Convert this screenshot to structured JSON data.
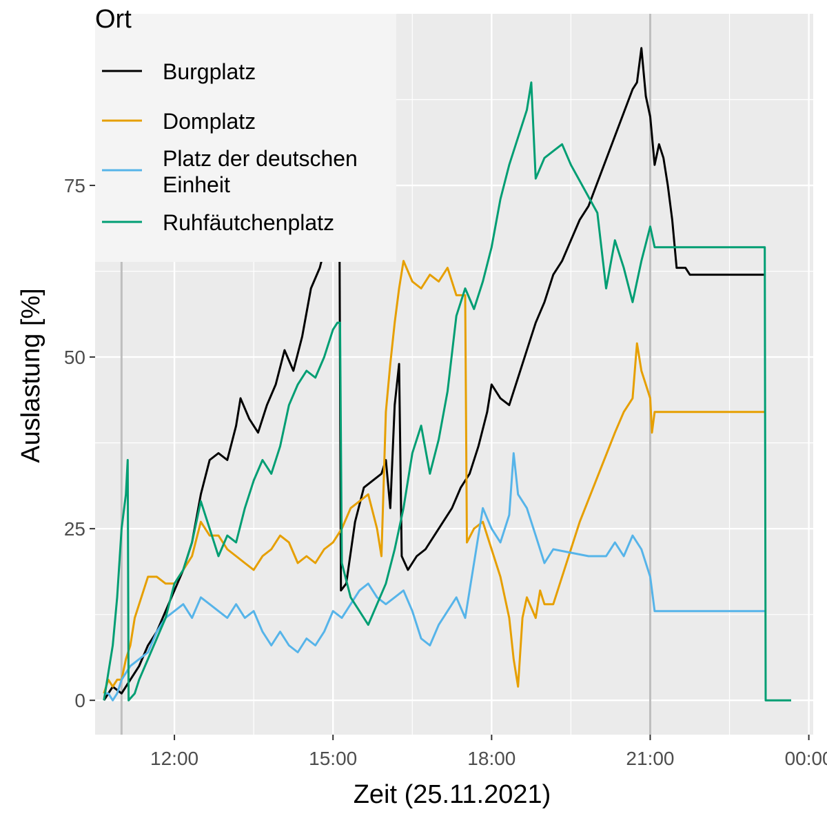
{
  "chart_data": {
    "type": "line",
    "xlabel": "Zeit (25.11.2021)",
    "ylabel": "Auslastung [%]",
    "xlim": [
      "10:30",
      "00:05"
    ],
    "ylim": [
      -5,
      100
    ],
    "x_ticks": [
      "12:00",
      "15:00",
      "18:00",
      "21:00",
      "00:00"
    ],
    "y_ticks": [
      0,
      25,
      50,
      75
    ],
    "grid": true,
    "vertical_reference_lines": [
      "11:00",
      "21:00"
    ],
    "legend": {
      "title": "Ort",
      "placement": "top-left"
    },
    "series": [
      {
        "name": "Burgplatz",
        "color": "#000000",
        "points": [
          [
            "10:40",
            0
          ],
          [
            "10:50",
            2
          ],
          [
            "11:00",
            1
          ],
          [
            "11:10",
            3
          ],
          [
            "11:20",
            5
          ],
          [
            "11:30",
            8
          ],
          [
            "11:40",
            10
          ],
          [
            "11:50",
            13
          ],
          [
            "12:00",
            16
          ],
          [
            "12:10",
            19
          ],
          [
            "12:20",
            23
          ],
          [
            "12:30",
            30
          ],
          [
            "12:40",
            35
          ],
          [
            "12:50",
            36
          ],
          [
            "13:00",
            35
          ],
          [
            "13:10",
            40
          ],
          [
            "13:15",
            44
          ],
          [
            "13:25",
            41
          ],
          [
            "13:35",
            39
          ],
          [
            "13:45",
            43
          ],
          [
            "13:55",
            46
          ],
          [
            "14:05",
            51
          ],
          [
            "14:15",
            48
          ],
          [
            "14:25",
            53
          ],
          [
            "14:35",
            60
          ],
          [
            "14:45",
            63
          ],
          [
            "14:55",
            68
          ],
          [
            "15:00",
            72
          ],
          [
            "15:03",
            75
          ],
          [
            "15:05",
            77
          ],
          [
            "15:07",
            78
          ],
          [
            "15:09",
            16
          ],
          [
            "15:15",
            17
          ],
          [
            "15:25",
            26
          ],
          [
            "15:35",
            31
          ],
          [
            "15:45",
            32
          ],
          [
            "15:55",
            33
          ],
          [
            "16:00",
            35
          ],
          [
            "16:05",
            28
          ],
          [
            "16:10",
            43
          ],
          [
            "16:15",
            49
          ],
          [
            "16:18",
            21
          ],
          [
            "16:25",
            19
          ],
          [
            "16:35",
            21
          ],
          [
            "16:45",
            22
          ],
          [
            "16:55",
            24
          ],
          [
            "17:05",
            26
          ],
          [
            "17:15",
            28
          ],
          [
            "17:25",
            31
          ],
          [
            "17:35",
            33
          ],
          [
            "17:45",
            37
          ],
          [
            "17:55",
            42
          ],
          [
            "18:00",
            46
          ],
          [
            "18:10",
            44
          ],
          [
            "18:20",
            43
          ],
          [
            "18:30",
            47
          ],
          [
            "18:40",
            51
          ],
          [
            "18:50",
            55
          ],
          [
            "19:00",
            58
          ],
          [
            "19:10",
            62
          ],
          [
            "19:20",
            64
          ],
          [
            "19:30",
            67
          ],
          [
            "19:40",
            70
          ],
          [
            "19:50",
            72
          ],
          [
            "20:40",
            89
          ],
          [
            "20:45",
            90
          ],
          [
            "20:50",
            95
          ],
          [
            "20:55",
            88
          ],
          [
            "21:00",
            85
          ],
          [
            "21:05",
            78
          ],
          [
            "21:10",
            81
          ],
          [
            "21:15",
            79
          ],
          [
            "21:20",
            75
          ],
          [
            "21:25",
            70
          ],
          [
            "21:30",
            63
          ],
          [
            "21:40",
            63
          ],
          [
            "21:45",
            62
          ],
          [
            "23:10",
            62
          ]
        ]
      },
      {
        "name": "Domplatz",
        "color": "#E69F00",
        "points": [
          [
            "10:40",
            1
          ],
          [
            "10:45",
            3
          ],
          [
            "10:50",
            2
          ],
          [
            "10:55",
            3
          ],
          [
            "11:00",
            3
          ],
          [
            "11:05",
            6
          ],
          [
            "11:10",
            8
          ],
          [
            "11:15",
            12
          ],
          [
            "11:20",
            14
          ],
          [
            "11:25",
            16
          ],
          [
            "11:30",
            18
          ],
          [
            "11:40",
            18
          ],
          [
            "11:50",
            17
          ],
          [
            "12:00",
            17
          ],
          [
            "12:10",
            19
          ],
          [
            "12:20",
            21
          ],
          [
            "12:30",
            26
          ],
          [
            "12:40",
            24
          ],
          [
            "12:50",
            24
          ],
          [
            "13:00",
            22
          ],
          [
            "13:10",
            21
          ],
          [
            "13:20",
            20
          ],
          [
            "13:30",
            19
          ],
          [
            "13:40",
            21
          ],
          [
            "13:50",
            22
          ],
          [
            "14:00",
            24
          ],
          [
            "14:10",
            23
          ],
          [
            "14:20",
            20
          ],
          [
            "14:30",
            21
          ],
          [
            "14:40",
            20
          ],
          [
            "14:50",
            22
          ],
          [
            "15:00",
            23
          ],
          [
            "15:10",
            25
          ],
          [
            "15:20",
            28
          ],
          [
            "15:30",
            29
          ],
          [
            "15:40",
            30
          ],
          [
            "15:50",
            25
          ],
          [
            "15:55",
            21
          ],
          [
            "16:00",
            42
          ],
          [
            "16:05",
            49
          ],
          [
            "16:10",
            55
          ],
          [
            "16:15",
            60
          ],
          [
            "16:20",
            64
          ],
          [
            "16:30",
            61
          ],
          [
            "16:40",
            60
          ],
          [
            "16:50",
            62
          ],
          [
            "17:00",
            61
          ],
          [
            "17:10",
            63
          ],
          [
            "17:20",
            59
          ],
          [
            "17:25",
            59
          ],
          [
            "17:30",
            59
          ],
          [
            "17:32",
            23
          ],
          [
            "17:40",
            25
          ],
          [
            "17:50",
            26
          ],
          [
            "18:00",
            22
          ],
          [
            "18:10",
            18
          ],
          [
            "18:20",
            12
          ],
          [
            "18:25",
            6
          ],
          [
            "18:30",
            2
          ],
          [
            "18:35",
            12
          ],
          [
            "18:40",
            15
          ],
          [
            "18:50",
            12
          ],
          [
            "18:55",
            16
          ],
          [
            "19:00",
            14
          ],
          [
            "19:10",
            14
          ],
          [
            "19:40",
            26
          ],
          [
            "20:20",
            39
          ],
          [
            "20:30",
            42
          ],
          [
            "20:40",
            44
          ],
          [
            "20:45",
            52
          ],
          [
            "20:50",
            48
          ],
          [
            "21:00",
            44
          ],
          [
            "21:02",
            39
          ],
          [
            "21:05",
            42
          ],
          [
            "23:10",
            42
          ]
        ]
      },
      {
        "name": "Platz der deutschen Einheit",
        "color": "#56B4E9",
        "points": [
          [
            "10:40",
            1
          ],
          [
            "10:45",
            1
          ],
          [
            "10:50",
            0
          ],
          [
            "10:55",
            1
          ],
          [
            "11:00",
            3
          ],
          [
            "11:10",
            5
          ],
          [
            "11:20",
            6
          ],
          [
            "11:30",
            7
          ],
          [
            "11:40",
            10
          ],
          [
            "11:50",
            12
          ],
          [
            "12:00",
            13
          ],
          [
            "12:10",
            14
          ],
          [
            "12:20",
            12
          ],
          [
            "12:30",
            15
          ],
          [
            "12:40",
            14
          ],
          [
            "12:50",
            13
          ],
          [
            "13:00",
            12
          ],
          [
            "13:10",
            14
          ],
          [
            "13:20",
            12
          ],
          [
            "13:30",
            13
          ],
          [
            "13:40",
            10
          ],
          [
            "13:50",
            8
          ],
          [
            "14:00",
            10
          ],
          [
            "14:10",
            8
          ],
          [
            "14:20",
            7
          ],
          [
            "14:30",
            9
          ],
          [
            "14:40",
            8
          ],
          [
            "14:50",
            10
          ],
          [
            "15:00",
            13
          ],
          [
            "15:10",
            12
          ],
          [
            "15:20",
            14
          ],
          [
            "15:30",
            16
          ],
          [
            "15:40",
            17
          ],
          [
            "15:50",
            15
          ],
          [
            "16:00",
            14
          ],
          [
            "16:10",
            15
          ],
          [
            "16:20",
            16
          ],
          [
            "16:30",
            13
          ],
          [
            "16:40",
            9
          ],
          [
            "16:50",
            8
          ],
          [
            "17:00",
            11
          ],
          [
            "17:10",
            13
          ],
          [
            "17:20",
            15
          ],
          [
            "17:30",
            12
          ],
          [
            "17:40",
            20
          ],
          [
            "17:50",
            28
          ],
          [
            "18:00",
            25
          ],
          [
            "18:10",
            23
          ],
          [
            "18:20",
            27
          ],
          [
            "18:25",
            36
          ],
          [
            "18:30",
            30
          ],
          [
            "18:40",
            28
          ],
          [
            "18:50",
            24
          ],
          [
            "19:00",
            20
          ],
          [
            "19:10",
            22
          ],
          [
            "19:50",
            21
          ],
          [
            "20:10",
            21
          ],
          [
            "20:20",
            23
          ],
          [
            "20:30",
            21
          ],
          [
            "20:40",
            24
          ],
          [
            "20:50",
            22
          ],
          [
            "21:00",
            18
          ],
          [
            "21:05",
            13
          ],
          [
            "23:10",
            13
          ]
        ]
      },
      {
        "name": "Ruhfäutchenplatz",
        "color": "#009E73",
        "points": [
          [
            "10:40",
            0
          ],
          [
            "10:45",
            4
          ],
          [
            "10:50",
            8
          ],
          [
            "10:55",
            15
          ],
          [
            "11:00",
            25
          ],
          [
            "11:05",
            30
          ],
          [
            "11:07",
            35
          ],
          [
            "11:08",
            0
          ],
          [
            "11:15",
            1
          ],
          [
            "11:20",
            3
          ],
          [
            "11:30",
            6
          ],
          [
            "11:40",
            9
          ],
          [
            "11:50",
            12
          ],
          [
            "12:00",
            17
          ],
          [
            "12:10",
            19
          ],
          [
            "12:20",
            23
          ],
          [
            "12:30",
            29
          ],
          [
            "12:40",
            25
          ],
          [
            "12:50",
            21
          ],
          [
            "13:00",
            24
          ],
          [
            "13:10",
            23
          ],
          [
            "13:20",
            28
          ],
          [
            "13:30",
            32
          ],
          [
            "13:40",
            35
          ],
          [
            "13:50",
            33
          ],
          [
            "14:00",
            37
          ],
          [
            "14:10",
            43
          ],
          [
            "14:20",
            46
          ],
          [
            "14:30",
            48
          ],
          [
            "14:40",
            47
          ],
          [
            "14:50",
            50
          ],
          [
            "15:00",
            54
          ],
          [
            "15:05",
            55
          ],
          [
            "15:08",
            55
          ],
          [
            "15:10",
            20
          ],
          [
            "15:20",
            15
          ],
          [
            "15:30",
            13
          ],
          [
            "15:40",
            11
          ],
          [
            "15:50",
            14
          ],
          [
            "16:00",
            17
          ],
          [
            "16:10",
            22
          ],
          [
            "16:20",
            28
          ],
          [
            "16:30",
            36
          ],
          [
            "16:40",
            40
          ],
          [
            "16:50",
            33
          ],
          [
            "17:00",
            38
          ],
          [
            "17:10",
            45
          ],
          [
            "17:20",
            56
          ],
          [
            "17:30",
            60
          ],
          [
            "17:40",
            57
          ],
          [
            "17:50",
            61
          ],
          [
            "18:00",
            66
          ],
          [
            "18:10",
            73
          ],
          [
            "18:20",
            78
          ],
          [
            "18:30",
            82
          ],
          [
            "18:40",
            86
          ],
          [
            "18:45",
            90
          ],
          [
            "18:50",
            76
          ],
          [
            "19:00",
            79
          ],
          [
            "19:10",
            80
          ],
          [
            "19:20",
            81
          ],
          [
            "19:30",
            78
          ],
          [
            "20:00",
            71
          ],
          [
            "20:10",
            60
          ],
          [
            "20:20",
            67
          ],
          [
            "20:30",
            63
          ],
          [
            "20:40",
            58
          ],
          [
            "20:50",
            64
          ],
          [
            "21:00",
            69
          ],
          [
            "21:05",
            66
          ],
          [
            "23:10",
            66
          ],
          [
            "23:11",
            0
          ],
          [
            "23:40",
            0
          ]
        ]
      }
    ]
  }
}
